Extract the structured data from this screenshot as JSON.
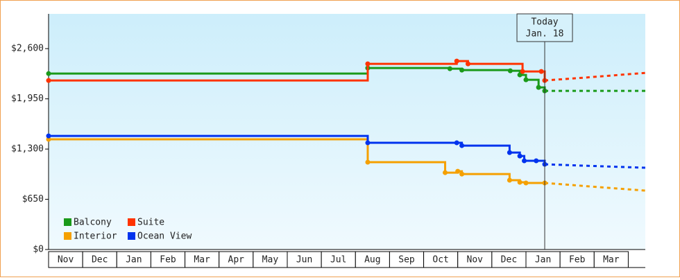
{
  "chart_data": {
    "type": "step-line",
    "categories": [
      "Nov",
      "Dec",
      "Jan",
      "Feb",
      "Mar",
      "Apr",
      "May",
      "Jun",
      "Jul",
      "Aug",
      "Sep",
      "Oct",
      "Nov",
      "Dec",
      "Jan",
      "Feb",
      "Mar"
    ],
    "xlim": [
      0,
      17.5
    ],
    "ylim": [
      0,
      3050
    ],
    "yticks": [
      {
        "value": 0,
        "label": "$0"
      },
      {
        "value": 650,
        "label": "$650"
      },
      {
        "value": 1300,
        "label": "$1,300"
      },
      {
        "value": 1950,
        "label": "$1,950"
      },
      {
        "value": 2600,
        "label": "$2,600"
      }
    ],
    "annotation": {
      "x": 14.55,
      "lines": [
        "Today",
        "Jan. 18"
      ]
    },
    "legend": "bottom-left",
    "series": [
      {
        "name": "Balcony",
        "color": "#1a9a1a",
        "x": [
          0,
          9.36,
          11.77,
          12.12,
          13.54,
          13.82,
          14.0,
          14.37,
          14.55,
          17.5
        ],
        "values": [
          2277,
          2349,
          2340,
          2322,
          2313,
          2260,
          2197,
          2098,
          2053,
          2053
        ]
      },
      {
        "name": "Suite",
        "color": "#ff3300",
        "x": [
          0,
          9.36,
          11.97,
          12.3,
          13.9,
          14.45,
          14.55,
          15.7,
          17.5
        ],
        "values": [
          2188,
          2403,
          2439,
          2403,
          2304,
          2304,
          2188,
          2224,
          2286
        ]
      },
      {
        "name": "Interior",
        "color": "#f5a000",
        "x": [
          0,
          9.36,
          11.63,
          12.0,
          12.12,
          13.52,
          13.82,
          14.0,
          14.55,
          17.5
        ],
        "values": [
          1426,
          1130,
          995,
          1013,
          977,
          897,
          870,
          861,
          861,
          762
        ]
      },
      {
        "name": "Ocean View",
        "color": "#0033ee",
        "x": [
          0,
          9.36,
          11.97,
          12.12,
          13.52,
          13.82,
          13.95,
          14.3,
          14.55,
          15.7,
          17.5
        ],
        "values": [
          1470,
          1381,
          1381,
          1345,
          1255,
          1210,
          1148,
          1148,
          1103,
          1085,
          1058
        ]
      }
    ]
  }
}
